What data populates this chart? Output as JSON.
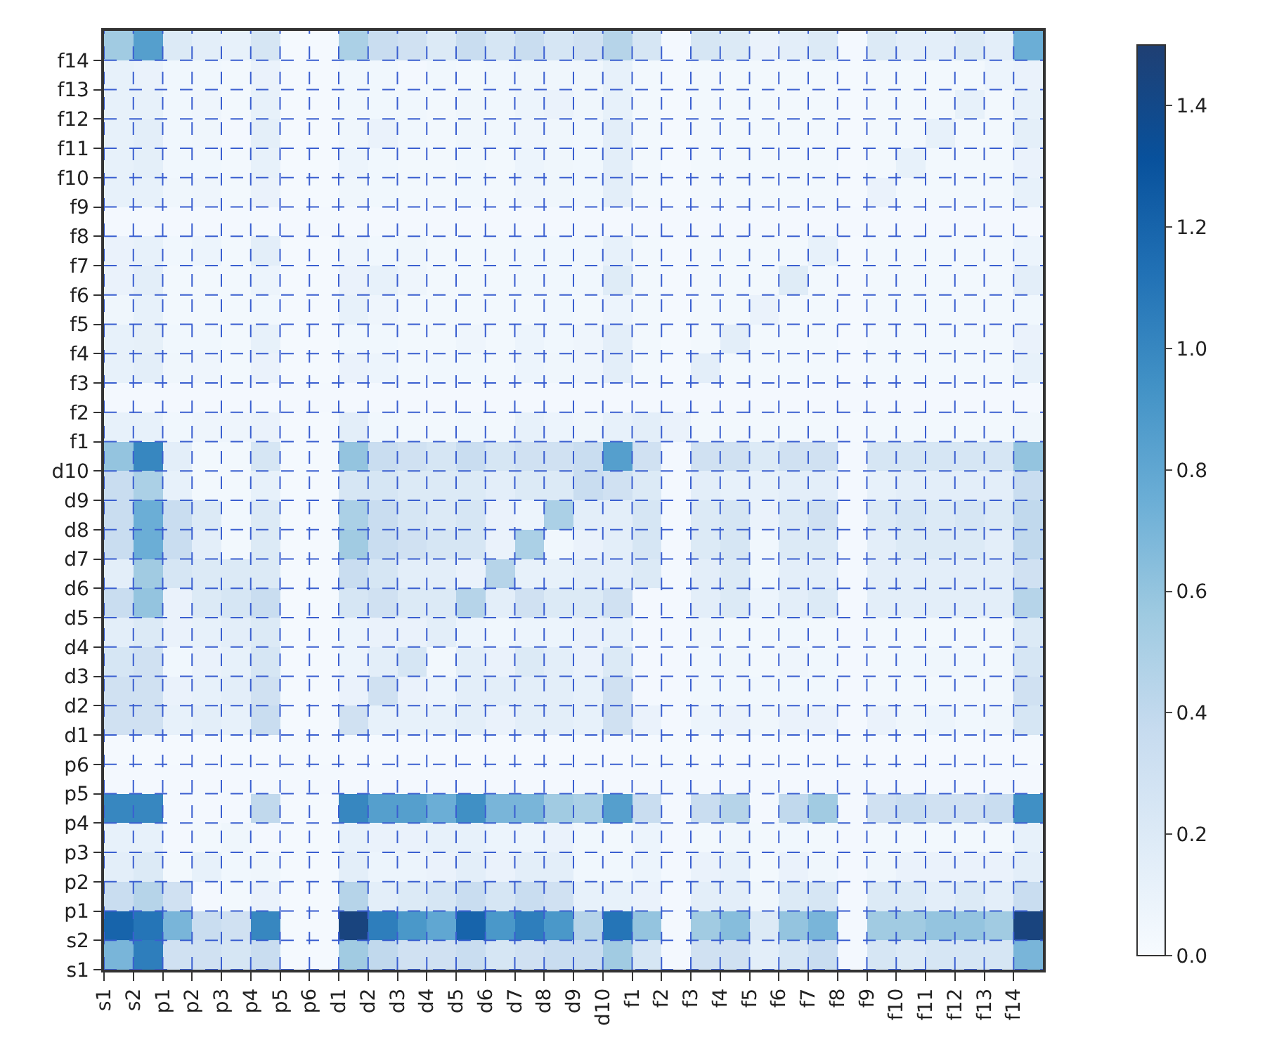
{
  "chart_data": {
    "type": "heatmap",
    "categories": [
      "s1",
      "s2",
      "p1",
      "p2",
      "p3",
      "p4",
      "p5",
      "p6",
      "d1",
      "d2",
      "d3",
      "d4",
      "d5",
      "d6",
      "d7",
      "d8",
      "d9",
      "d10",
      "f1",
      "f2",
      "f3",
      "f4",
      "f5",
      "f6",
      "f7",
      "f8",
      "f9",
      "f10",
      "f11",
      "f12",
      "f13",
      "f14"
    ],
    "y_categories": [
      "f14",
      "f13",
      "f12",
      "f11",
      "f10",
      "f9",
      "f8",
      "f7",
      "f6",
      "f5",
      "f4",
      "f3",
      "f2",
      "f1",
      "d10",
      "d9",
      "d8",
      "d7",
      "d6",
      "d5",
      "d4",
      "d3",
      "d2",
      "d1",
      "p6",
      "p5",
      "p4",
      "p3",
      "p2",
      "p1",
      "s2",
      "s1"
    ],
    "cells": [
      [
        0.55,
        0.85,
        0.2,
        0.15,
        0.12,
        0.25,
        0.02,
        0.02,
        0.5,
        0.35,
        0.3,
        0.2,
        0.35,
        0.25,
        0.35,
        0.25,
        0.3,
        0.45,
        0.25,
        0.03,
        0.25,
        0.2,
        0.1,
        0.15,
        0.2,
        0.03,
        0.2,
        0.15,
        0.15,
        0.2,
        0.15,
        0.75
      ],
      [
        0.12,
        0.1,
        0.05,
        0.05,
        0.04,
        0.1,
        0.02,
        0.02,
        0.05,
        0.05,
        0.03,
        0.05,
        0.04,
        0.05,
        0.06,
        0.06,
        0.06,
        0.12,
        0.04,
        0.02,
        0.04,
        0.04,
        0.04,
        0.04,
        0.04,
        0.02,
        0.04,
        0.04,
        0.04,
        0.04,
        0.08,
        0.1
      ],
      [
        0.12,
        0.12,
        0.05,
        0.07,
        0.04,
        0.12,
        0.02,
        0.02,
        0.05,
        0.05,
        0.05,
        0.04,
        0.06,
        0.05,
        0.08,
        0.1,
        0.06,
        0.12,
        0.04,
        0.02,
        0.04,
        0.04,
        0.04,
        0.04,
        0.04,
        0.02,
        0.04,
        0.04,
        0.04,
        0.12,
        0.04,
        0.12
      ],
      [
        0.12,
        0.15,
        0.05,
        0.06,
        0.03,
        0.14,
        0.02,
        0.02,
        0.06,
        0.1,
        0.05,
        0.04,
        0.06,
        0.05,
        0.07,
        0.06,
        0.05,
        0.15,
        0.04,
        0.02,
        0.04,
        0.04,
        0.04,
        0.04,
        0.04,
        0.02,
        0.04,
        0.04,
        0.12,
        0.04,
        0.04,
        0.14
      ],
      [
        0.12,
        0.14,
        0.05,
        0.05,
        0.04,
        0.12,
        0.02,
        0.02,
        0.08,
        0.05,
        0.04,
        0.04,
        0.05,
        0.04,
        0.08,
        0.06,
        0.05,
        0.15,
        0.04,
        0.02,
        0.04,
        0.04,
        0.04,
        0.04,
        0.04,
        0.02,
        0.04,
        0.12,
        0.04,
        0.04,
        0.04,
        0.1
      ],
      [
        0.12,
        0.12,
        0.06,
        0.07,
        0.04,
        0.1,
        0.02,
        0.02,
        0.06,
        0.05,
        0.04,
        0.04,
        0.05,
        0.04,
        0.07,
        0.06,
        0.05,
        0.15,
        0.04,
        0.02,
        0.04,
        0.04,
        0.04,
        0.04,
        0.04,
        0.02,
        0.1,
        0.04,
        0.04,
        0.04,
        0.04,
        0.12
      ],
      [
        0.03,
        0.03,
        0.03,
        0.03,
        0.03,
        0.03,
        0.03,
        0.03,
        0.03,
        0.03,
        0.03,
        0.03,
        0.03,
        0.03,
        0.03,
        0.03,
        0.03,
        0.03,
        0.03,
        0.03,
        0.03,
        0.03,
        0.03,
        0.03,
        0.03,
        0.03,
        0.03,
        0.03,
        0.03,
        0.03,
        0.03,
        0.03
      ],
      [
        0.1,
        0.12,
        0.05,
        0.08,
        0.04,
        0.15,
        0.02,
        0.02,
        0.07,
        0.05,
        0.06,
        0.04,
        0.04,
        0.04,
        0.05,
        0.05,
        0.05,
        0.12,
        0.04,
        0.02,
        0.04,
        0.04,
        0.04,
        0.04,
        0.12,
        0.02,
        0.04,
        0.04,
        0.04,
        0.04,
        0.04,
        0.08
      ],
      [
        0.1,
        0.15,
        0.04,
        0.04,
        0.04,
        0.08,
        0.02,
        0.02,
        0.1,
        0.12,
        0.07,
        0.04,
        0.04,
        0.04,
        0.05,
        0.05,
        0.05,
        0.18,
        0.04,
        0.02,
        0.04,
        0.04,
        0.04,
        0.18,
        0.04,
        0.02,
        0.04,
        0.04,
        0.04,
        0.04,
        0.04,
        0.15
      ],
      [
        0.06,
        0.12,
        0.04,
        0.04,
        0.04,
        0.05,
        0.02,
        0.02,
        0.12,
        0.07,
        0.04,
        0.04,
        0.04,
        0.04,
        0.04,
        0.05,
        0.04,
        0.08,
        0.04,
        0.02,
        0.04,
        0.04,
        0.1,
        0.04,
        0.04,
        0.02,
        0.04,
        0.04,
        0.04,
        0.04,
        0.04,
        0.05
      ],
      [
        0.12,
        0.13,
        0.05,
        0.05,
        0.04,
        0.12,
        0.02,
        0.02,
        0.05,
        0.05,
        0.04,
        0.04,
        0.07,
        0.04,
        0.08,
        0.05,
        0.07,
        0.15,
        0.04,
        0.02,
        0.04,
        0.15,
        0.04,
        0.04,
        0.04,
        0.02,
        0.04,
        0.04,
        0.04,
        0.04,
        0.04,
        0.1
      ],
      [
        0.12,
        0.15,
        0.06,
        0.07,
        0.04,
        0.1,
        0.02,
        0.02,
        0.1,
        0.08,
        0.04,
        0.05,
        0.05,
        0.04,
        0.08,
        0.06,
        0.07,
        0.15,
        0.04,
        0.02,
        0.15,
        0.04,
        0.04,
        0.04,
        0.04,
        0.02,
        0.04,
        0.04,
        0.04,
        0.04,
        0.04,
        0.12
      ],
      [
        0.03,
        0.03,
        0.03,
        0.03,
        0.03,
        0.03,
        0.03,
        0.03,
        0.03,
        0.03,
        0.03,
        0.03,
        0.03,
        0.03,
        0.03,
        0.03,
        0.03,
        0.03,
        0.03,
        0.03,
        0.03,
        0.03,
        0.03,
        0.03,
        0.03,
        0.03,
        0.03,
        0.03,
        0.03,
        0.03,
        0.03,
        0.03
      ],
      [
        0.12,
        0.12,
        0.05,
        0.07,
        0.07,
        0.1,
        0.02,
        0.02,
        0.15,
        0.05,
        0.04,
        0.04,
        0.05,
        0.04,
        0.12,
        0.08,
        0.06,
        0.12,
        0.15,
        0.1,
        0.04,
        0.04,
        0.04,
        0.04,
        0.04,
        0.02,
        0.04,
        0.04,
        0.04,
        0.04,
        0.04,
        0.06
      ],
      [
        0.6,
        1.0,
        0.15,
        0.04,
        0.04,
        0.25,
        0.02,
        0.02,
        0.6,
        0.35,
        0.3,
        0.25,
        0.35,
        0.25,
        0.3,
        0.3,
        0.35,
        0.85,
        0.3,
        0.03,
        0.3,
        0.3,
        0.2,
        0.3,
        0.3,
        0.03,
        0.25,
        0.25,
        0.25,
        0.25,
        0.25,
        0.6
      ],
      [
        0.35,
        0.5,
        0.12,
        0.04,
        0.04,
        0.12,
        0.02,
        0.02,
        0.25,
        0.25,
        0.2,
        0.2,
        0.2,
        0.15,
        0.2,
        0.2,
        0.35,
        0.3,
        0.2,
        0.03,
        0.15,
        0.12,
        0.12,
        0.15,
        0.15,
        0.03,
        0.12,
        0.15,
        0.15,
        0.15,
        0.15,
        0.35
      ],
      [
        0.35,
        0.75,
        0.35,
        0.2,
        0.05,
        0.2,
        0.02,
        0.02,
        0.5,
        0.35,
        0.25,
        0.2,
        0.25,
        0.1,
        0.08,
        0.5,
        0.15,
        0.15,
        0.25,
        0.03,
        0.2,
        0.25,
        0.1,
        0.2,
        0.3,
        0.03,
        0.2,
        0.25,
        0.2,
        0.25,
        0.2,
        0.4
      ],
      [
        0.35,
        0.75,
        0.35,
        0.15,
        0.04,
        0.2,
        0.02,
        0.02,
        0.55,
        0.35,
        0.3,
        0.25,
        0.25,
        0.1,
        0.5,
        0.05,
        0.1,
        0.15,
        0.25,
        0.03,
        0.2,
        0.25,
        0.05,
        0.2,
        0.2,
        0.03,
        0.15,
        0.2,
        0.2,
        0.2,
        0.15,
        0.4
      ],
      [
        0.15,
        0.55,
        0.25,
        0.2,
        0.2,
        0.2,
        0.02,
        0.02,
        0.35,
        0.25,
        0.15,
        0.15,
        0.1,
        0.45,
        0.12,
        0.12,
        0.15,
        0.15,
        0.2,
        0.03,
        0.15,
        0.2,
        0.05,
        0.15,
        0.15,
        0.03,
        0.15,
        0.15,
        0.15,
        0.15,
        0.15,
        0.3
      ],
      [
        0.35,
        0.6,
        0.1,
        0.2,
        0.25,
        0.35,
        0.02,
        0.02,
        0.25,
        0.3,
        0.2,
        0.2,
        0.45,
        0.15,
        0.3,
        0.2,
        0.2,
        0.3,
        0.03,
        0.03,
        0.15,
        0.2,
        0.08,
        0.15,
        0.2,
        0.03,
        0.15,
        0.15,
        0.15,
        0.15,
        0.15,
        0.45
      ],
      [
        0.15,
        0.2,
        0.1,
        0.12,
        0.15,
        0.2,
        0.02,
        0.02,
        0.08,
        0.1,
        0.1,
        0.15,
        0.08,
        0.05,
        0.08,
        0.08,
        0.1,
        0.12,
        0.03,
        0.03,
        0.06,
        0.04,
        0.04,
        0.05,
        0.04,
        0.03,
        0.04,
        0.04,
        0.04,
        0.04,
        0.04,
        0.2
      ],
      [
        0.25,
        0.3,
        0.05,
        0.1,
        0.12,
        0.25,
        0.02,
        0.02,
        0.08,
        0.15,
        0.25,
        0.04,
        0.15,
        0.1,
        0.2,
        0.15,
        0.1,
        0.2,
        0.03,
        0.03,
        0.05,
        0.06,
        0.04,
        0.07,
        0.05,
        0.03,
        0.04,
        0.05,
        0.06,
        0.05,
        0.04,
        0.25
      ],
      [
        0.3,
        0.3,
        0.1,
        0.12,
        0.15,
        0.3,
        0.02,
        0.02,
        0.1,
        0.3,
        0.1,
        0.08,
        0.15,
        0.15,
        0.15,
        0.15,
        0.12,
        0.3,
        0.03,
        0.03,
        0.05,
        0.05,
        0.05,
        0.05,
        0.05,
        0.03,
        0.04,
        0.04,
        0.04,
        0.04,
        0.04,
        0.3
      ],
      [
        0.3,
        0.3,
        0.12,
        0.15,
        0.12,
        0.35,
        0.02,
        0.02,
        0.3,
        0.12,
        0.12,
        0.12,
        0.15,
        0.1,
        0.15,
        0.15,
        0.12,
        0.3,
        0.1,
        0.03,
        0.08,
        0.1,
        0.06,
        0.1,
        0.1,
        0.03,
        0.1,
        0.06,
        0.08,
        0.05,
        0.06,
        0.25
      ],
      [
        0.02,
        0.02,
        0.02,
        0.02,
        0.02,
        0.02,
        0.02,
        0.02,
        0.02,
        0.02,
        0.02,
        0.02,
        0.02,
        0.02,
        0.02,
        0.02,
        0.02,
        0.02,
        0.02,
        0.02,
        0.02,
        0.02,
        0.02,
        0.02,
        0.02,
        0.02,
        0.02,
        0.02,
        0.02,
        0.02,
        0.02,
        0.02
      ],
      [
        0.03,
        0.03,
        0.03,
        0.03,
        0.03,
        0.03,
        0.03,
        0.03,
        0.03,
        0.03,
        0.03,
        0.03,
        0.03,
        0.03,
        0.03,
        0.03,
        0.03,
        0.03,
        0.03,
        0.03,
        0.03,
        0.03,
        0.03,
        0.03,
        0.03,
        0.03,
        0.03,
        0.03,
        0.03,
        0.03,
        0.03,
        0.03
      ],
      [
        1.0,
        1.0,
        0.03,
        0.03,
        0.03,
        0.4,
        0.02,
        0.02,
        1.0,
        0.85,
        0.85,
        0.75,
        0.95,
        0.7,
        0.7,
        0.55,
        0.5,
        0.85,
        0.35,
        0.03,
        0.35,
        0.45,
        0.03,
        0.4,
        0.55,
        0.03,
        0.3,
        0.35,
        0.3,
        0.3,
        0.35,
        0.95
      ],
      [
        0.12,
        0.12,
        0.03,
        0.04,
        0.06,
        0.03,
        0.02,
        0.02,
        0.12,
        0.1,
        0.1,
        0.12,
        0.12,
        0.08,
        0.08,
        0.1,
        0.05,
        0.04,
        0.08,
        0.03,
        0.04,
        0.06,
        0.04,
        0.05,
        0.04,
        0.03,
        0.04,
        0.04,
        0.04,
        0.04,
        0.04,
        0.12
      ],
      [
        0.15,
        0.2,
        0.04,
        0.12,
        0.05,
        0.06,
        0.02,
        0.02,
        0.15,
        0.08,
        0.08,
        0.1,
        0.15,
        0.1,
        0.15,
        0.15,
        0.05,
        0.05,
        0.08,
        0.03,
        0.1,
        0.12,
        0.04,
        0.1,
        0.06,
        0.03,
        0.06,
        0.1,
        0.1,
        0.1,
        0.1,
        0.15
      ],
      [
        0.35,
        0.45,
        0.3,
        0.03,
        0.04,
        0.1,
        0.02,
        0.02,
        0.45,
        0.15,
        0.2,
        0.25,
        0.35,
        0.25,
        0.35,
        0.3,
        0.12,
        0.12,
        0.1,
        0.03,
        0.15,
        0.15,
        0.06,
        0.2,
        0.25,
        0.03,
        0.2,
        0.2,
        0.15,
        0.2,
        0.15,
        0.35
      ],
      [
        1.2,
        1.1,
        0.7,
        0.35,
        0.3,
        1.0,
        0.02,
        0.02,
        1.45,
        1.05,
        0.9,
        0.8,
        1.2,
        0.9,
        1.05,
        0.9,
        0.45,
        1.1,
        0.6,
        0.03,
        0.55,
        0.65,
        0.2,
        0.6,
        0.7,
        0.03,
        0.55,
        0.55,
        0.6,
        0.6,
        0.55,
        1.45
      ],
      [
        0.7,
        1.05,
        0.3,
        0.3,
        0.25,
        0.35,
        0.02,
        0.02,
        0.55,
        0.4,
        0.3,
        0.3,
        0.35,
        0.25,
        0.3,
        0.35,
        0.35,
        0.55,
        0.25,
        0.03,
        0.3,
        0.3,
        0.15,
        0.25,
        0.35,
        0.03,
        0.25,
        0.2,
        0.25,
        0.25,
        0.25,
        0.7
      ]
    ],
    "clim": [
      0,
      1.5
    ],
    "cticks": [
      {
        "value": 0,
        "label": "0.0"
      },
      {
        "value": 0.2,
        "label": "0.2"
      },
      {
        "value": 0.4,
        "label": "0.4"
      },
      {
        "value": 0.6,
        "label": "0.6"
      },
      {
        "value": 0.8,
        "label": "0.8"
      },
      {
        "value": 1.0,
        "label": "1.0"
      },
      {
        "value": 1.2,
        "label": "1.2"
      },
      {
        "value": 1.4,
        "label": "1.4"
      }
    ],
    "grid": true
  }
}
